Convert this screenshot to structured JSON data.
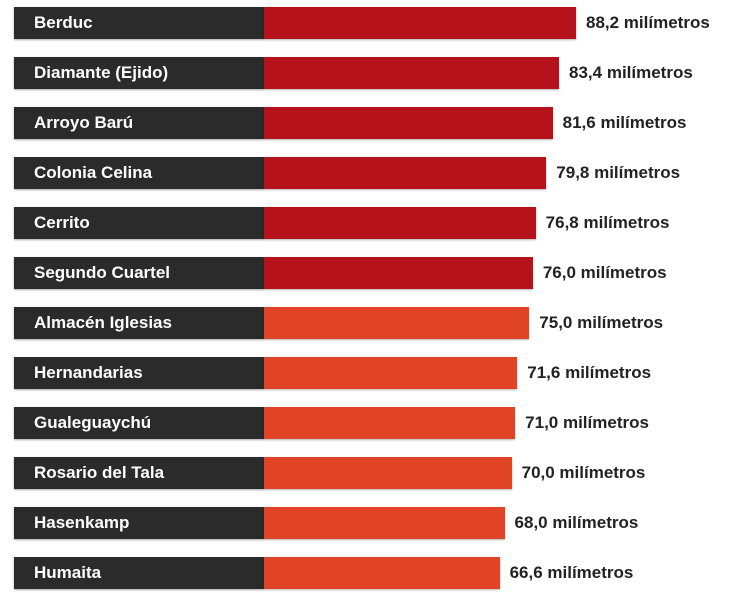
{
  "chart_data": {
    "type": "bar",
    "orientation": "horizontal",
    "categories": [
      "Berduc",
      "Diamante (Ejido)",
      "Arroyo Barú",
      "Colonia Celina",
      "Cerrito",
      "Segundo Cuartel",
      "Almacén Iglesias",
      "Hernandarias",
      "Gualeguaychú",
      "Rosario del Tala",
      "Hasenkamp",
      "Humaita"
    ],
    "values": [
      88.2,
      83.4,
      81.6,
      79.8,
      76.8,
      76.0,
      75.0,
      71.6,
      71.0,
      70.0,
      68.0,
      66.6
    ],
    "value_labels": [
      "88,2 milímetros",
      "83,4 milímetros",
      "81,6 milímetros",
      "79,8 milímetros",
      "76,8 milímetros",
      "76,0 milímetros",
      "75,0 milímetros",
      "71,6 milímetros",
      "71,0 milímetros",
      "70,0 milímetros",
      "68,0 milímetros",
      "66,6 milímetros"
    ],
    "bar_colors": [
      "#b5121b",
      "#b5121b",
      "#b5121b",
      "#b5121b",
      "#b5121b",
      "#b5121b",
      "#e04424",
      "#e04424",
      "#e04424",
      "#e04424",
      "#e04424",
      "#e04424"
    ],
    "label_box_color": "#2b2b2b",
    "title": "",
    "xlabel": "",
    "ylabel": "",
    "grid": false,
    "legend": "none"
  }
}
